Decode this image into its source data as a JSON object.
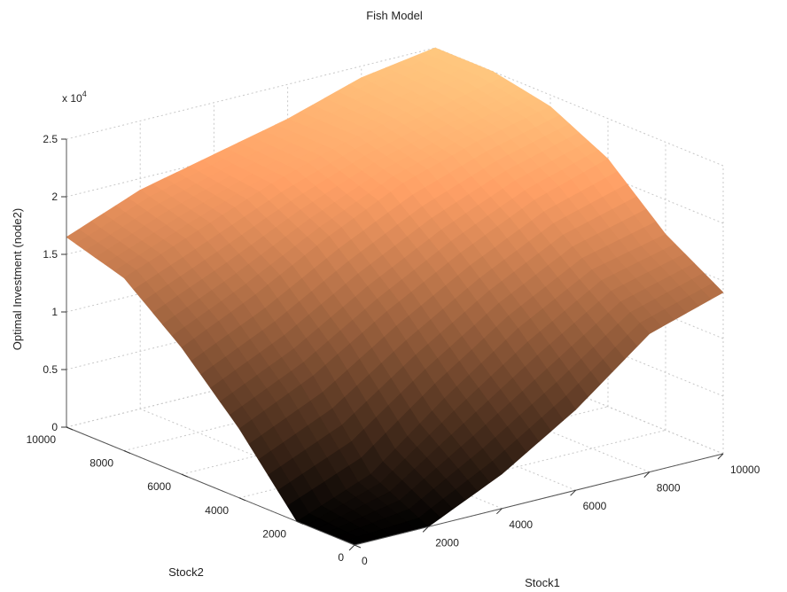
{
  "chart_data": {
    "type": "surface",
    "title": "Fish Model",
    "xlabel": "Stock1",
    "ylabel": "Stock2",
    "zlabel": "Optimal Investment (node2)",
    "z_exponent_label": "x 10",
    "z_exponent_power": "4",
    "xlim": [
      0,
      10000
    ],
    "ylim": [
      0,
      10000
    ],
    "zlim": [
      0,
      25000
    ],
    "x_ticks": [
      "0",
      "2000",
      "4000",
      "6000",
      "8000",
      "10000"
    ],
    "y_ticks": [
      "0",
      "2000",
      "4000",
      "6000",
      "8000",
      "10000"
    ],
    "z_ticks": [
      "0",
      "0.5",
      "1",
      "1.5",
      "2",
      "2.5"
    ],
    "grid": true,
    "colormap": "copper",
    "x": [
      0,
      2000,
      4000,
      6000,
      8000,
      10000
    ],
    "y": [
      0,
      2000,
      4000,
      6000,
      8000,
      10000
    ],
    "z": [
      [
        0,
        0,
        3000,
        7000,
        12000,
        14000
      ],
      [
        0,
        2500,
        7500,
        12000,
        15500,
        17000
      ],
      [
        6000,
        9000,
        13000,
        16500,
        19500,
        21500
      ],
      [
        11000,
        14000,
        17500,
        20500,
        22500,
        24000
      ],
      [
        15000,
        17500,
        20000,
        22000,
        23500,
        25000
      ],
      [
        16500,
        19000,
        20500,
        22000,
        24000,
        25000
      ]
    ]
  }
}
